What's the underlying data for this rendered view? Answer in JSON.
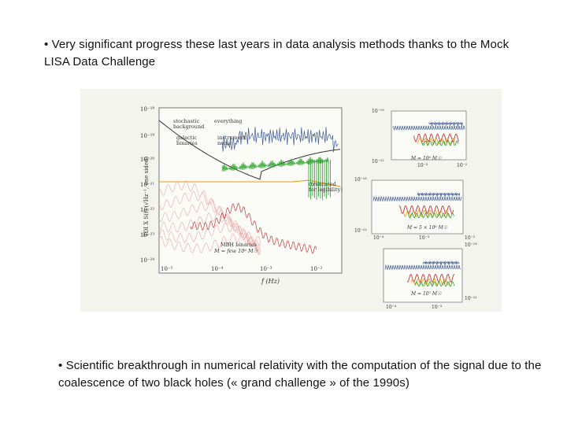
{
  "bullets": [
    "• Very significant progress these last years in data analysis methods thanks to the Mock LISA Data Challenge",
    "• Scientific breakthrough in numerical relativity with the computation of the signal due to the coalescence of two black holes (« grand challenge » of the 1990s)"
  ],
  "figure": {
    "main_plot": {
      "ylabel": "TDI X S(f) (√Hz⁻¹, one sided)",
      "xlabel": "f (Hz)",
      "y_ticks": [
        "10⁻¹⁸",
        "10⁻¹⁹",
        "10⁻²⁰",
        "10⁻²¹",
        "10⁻²²",
        "10⁻²³",
        "10⁻²⁴"
      ],
      "x_ticks": [
        "10⁻⁵",
        "10⁻⁴",
        "10⁻³",
        "10⁻²"
      ],
      "labels": {
        "stochastic": "stochastic",
        "background": "background",
        "everything": "everything",
        "galactic": "galactic",
        "binaries": "binaries",
        "instrument": "instrument",
        "noise": "noise",
        "truncated": "(truncated",
        "legibility": "for legibility)",
        "mbh": "MBH binaries",
        "mass": "M = few 10⁶ M☉"
      }
    },
    "insets": [
      {
        "mass": "M = 10⁶ M☉",
        "ytop": "10⁻¹⁸",
        "ybot": "10⁻²²",
        "x": [
          "10⁻³",
          "10⁻²"
        ]
      },
      {
        "mass": "M = 5 × 10⁶ M☉",
        "ytop": "10⁻¹⁸",
        "ybot": "10⁻²²",
        "x": [
          "10⁻⁴",
          "10⁻³",
          "10⁻²"
        ]
      },
      {
        "mass": "M = 10⁷ M☉",
        "ytop": "10⁻¹⁸",
        "ybot": "10⁻²²",
        "x": [
          "10⁻⁴",
          "10⁻³"
        ]
      }
    ]
  },
  "colors": {
    "noise": "#333333",
    "galactic": "#2aa02a",
    "background": "#e89a1a",
    "everything": "#3d5a96",
    "mbh": "#c0393b"
  }
}
